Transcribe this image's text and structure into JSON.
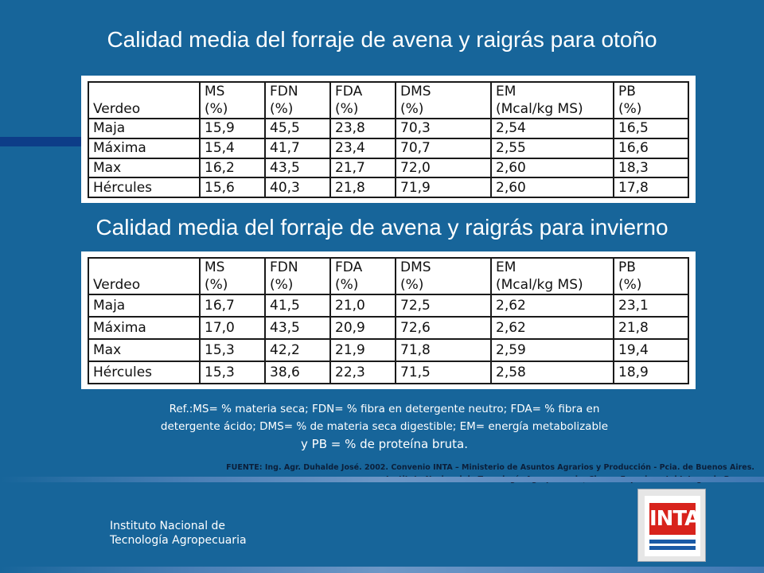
{
  "slide": {
    "title_autumn": "Calidad media del forraje de avena y raigrás para otoño",
    "title_winter": "Calidad media del forraje de avena y raigrás para invierno"
  },
  "table_headers": [
    [
      "",
      "Verdeo"
    ],
    [
      "MS",
      "(%)"
    ],
    [
      "FDN",
      "(%)"
    ],
    [
      "FDA",
      "(%)"
    ],
    [
      "DMS",
      "(%)"
    ],
    [
      "EM",
      "(Mcal/kg MS)"
    ],
    [
      "PB",
      "(%)"
    ]
  ],
  "table_autumn": {
    "rows": [
      [
        "Maja",
        "15,9",
        "45,5",
        "23,8",
        "70,3",
        "2,54",
        "16,5"
      ],
      [
        "Máxima",
        "15,4",
        "41,7",
        "23,4",
        "70,7",
        "2,55",
        "16,6"
      ],
      [
        "Max",
        "16,2",
        "43,5",
        "21,7",
        "72,0",
        "2,60",
        "18,3"
      ],
      [
        "Hércules",
        "15,6",
        "40,3",
        "21,8",
        "71,9",
        "2,60",
        "17,8"
      ]
    ]
  },
  "table_winter": {
    "rows": [
      [
        "Maja",
        "16,7",
        "41,5",
        "21,0",
        "72,5",
        "2,62",
        "23,1"
      ],
      [
        "Máxima",
        "17,0",
        "43,5",
        "20,9",
        "72,6",
        "2,62",
        "21,8"
      ],
      [
        "Max",
        "15,3",
        "42,2",
        "21,9",
        "71,8",
        "2,59",
        "19,4"
      ],
      [
        "Hércules",
        "15,3",
        "38,6",
        "22,3",
        "71,5",
        "2,58",
        "18,9"
      ]
    ]
  },
  "reference_note": {
    "line1": "Ref.:MS= % materia seca; FDN= % fibra en detergente neutro; FDA= % fibra en",
    "line2": "detergente ácido; DMS= % de materia seca digestible; EM= energía metabolizable",
    "line3": "y PB = % de proteína bruta."
  },
  "source": {
    "line1": "FUENTE: Ing. Agr. Duhalde José. 2002. Convenio INTA – Ministerio de Asuntos Agrarios y Producción - Pcia. de Buenos Aires.",
    "line2": "Instituto Nacional de Tecnología Agropecuaria, Chacra Experimental Integrada Barrow"
  },
  "organization": {
    "line1": "Instituto Nacional de",
    "line2": "Tecnología Agropecuaria"
  },
  "logo": {
    "text": "INTA",
    "icon": "inta-logo"
  },
  "colors": {
    "background": "#17659a",
    "logo_red": "#d8231c",
    "logo_blue": "#1a5aa6"
  }
}
